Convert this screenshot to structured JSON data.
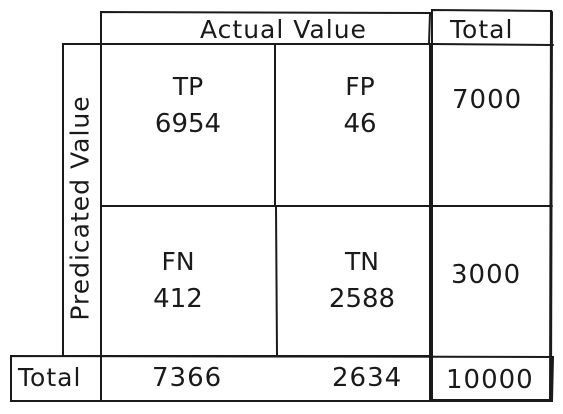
{
  "headers": {
    "actual": "Actual Value",
    "predicted": "Predicated Value",
    "total_column": "Total",
    "total_row": "Total"
  },
  "cells": {
    "tp": {
      "code": "TP",
      "value": "6954"
    },
    "fp": {
      "code": "FP",
      "value": "46"
    },
    "fn": {
      "code": "FN",
      "value": "412"
    },
    "tn": {
      "code": "TN",
      "value": "2588"
    }
  },
  "row_totals": {
    "predicted_positive": "7000",
    "predicted_negative": "3000"
  },
  "column_totals": {
    "actual_positive": "7366",
    "actual_negative": "2634",
    "grand_total": "10000"
  },
  "colors": {
    "ink": "#1a1a1a",
    "background": "#ffffff"
  }
}
